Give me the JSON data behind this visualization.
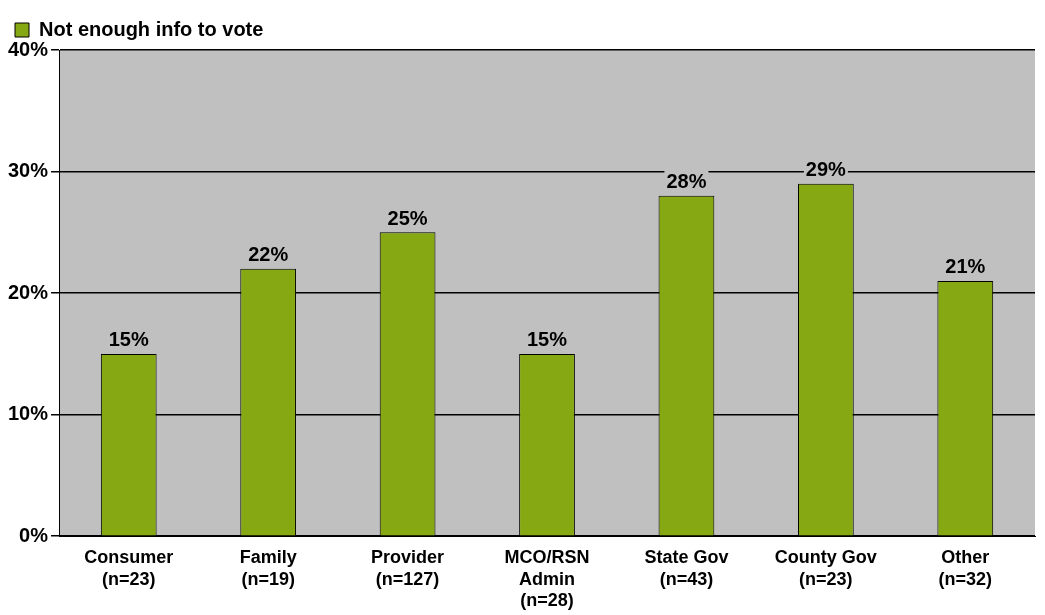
{
  "chart_data": {
    "type": "bar",
    "categories": [
      "Consumer\n(n=23)",
      "Family\n(n=19)",
      "Provider\n(n=127)",
      "MCO/RSN\nAdmin\n(n=28)",
      "State Gov\n(n=43)",
      "County Gov\n(n=23)",
      "Other\n(n=32)"
    ],
    "series": [
      {
        "name": "Not enough info to vote",
        "color": "#86a812",
        "values": [
          15,
          22,
          25,
          15,
          28,
          29,
          21
        ],
        "value_labels": [
          "15%",
          "22%",
          "25%",
          "15%",
          "28%",
          "29%",
          "21%"
        ]
      }
    ],
    "ylim": [
      0,
      40
    ],
    "yticks": [
      {
        "value": 0,
        "label": "0%"
      },
      {
        "value": 10,
        "label": "10%"
      },
      {
        "value": 20,
        "label": "20%"
      },
      {
        "value": 30,
        "label": "30%"
      },
      {
        "value": 40,
        "label": "40%"
      }
    ],
    "grid": "y",
    "legend": "top left"
  }
}
